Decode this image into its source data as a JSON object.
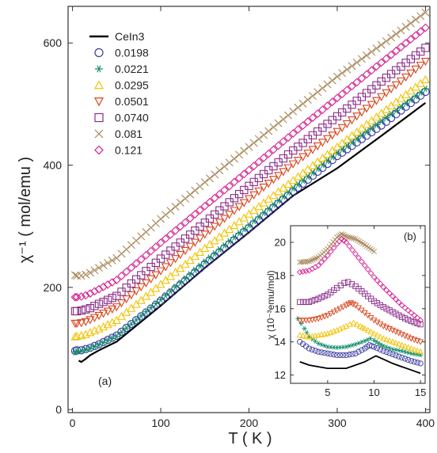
{
  "chart_data": [
    {
      "type": "scatter",
      "panel_label": "(a)",
      "xlabel": "T ( K )",
      "ylabel": "χ⁻¹ ( mol/emu )",
      "xlim": [
        -5,
        405
      ],
      "ylim": [
        -5,
        660
      ],
      "xticks": [
        0,
        100,
        200,
        300,
        400
      ],
      "yticks": [
        0,
        200,
        400,
        600
      ],
      "grid": false,
      "legend_position": "top-left",
      "series": [
        {
          "name": "CeIn3",
          "marker": "line",
          "color": "#000000",
          "x": [
            7,
            10,
            15,
            20,
            30,
            50,
            100,
            150,
            200,
            250,
            300,
            350,
            400
          ],
          "y": [
            80,
            78,
            83,
            89,
            97,
            111,
            170,
            232,
            290,
            350,
            395,
            448,
            502
          ]
        },
        {
          "name": "0.0198",
          "marker": "circle",
          "color": "#3a3a9e",
          "x": [
            3,
            5,
            10,
            15,
            20,
            30,
            50,
            100,
            150,
            200,
            250,
            300,
            350,
            400
          ],
          "y": [
            96,
            97,
            97,
            99,
            101,
            107,
            121,
            178,
            238,
            297,
            357,
            415,
            465,
            520
          ]
        },
        {
          "name": "0.0221",
          "marker": "asterisk",
          "color": "#12906a",
          "x": [
            3,
            5,
            10,
            15,
            20,
            30,
            50,
            100,
            150,
            200,
            250,
            300,
            350,
            400
          ],
          "y": [
            94,
            95,
            96,
            98,
            100,
            106,
            120,
            180,
            242,
            302,
            362,
            420,
            472,
            525
          ]
        },
        {
          "name": "0.0295",
          "marker": "triangle-up",
          "color": "#f2c200",
          "x": [
            3,
            5,
            10,
            15,
            20,
            30,
            50,
            100,
            150,
            200,
            250,
            300,
            350,
            400
          ],
          "y": [
            119,
            120,
            121,
            123,
            126,
            132,
            146,
            205,
            264,
            320,
            375,
            430,
            485,
            540
          ]
        },
        {
          "name": "0.0501",
          "marker": "triangle-down",
          "color": "#d9431a",
          "x": [
            3,
            5,
            10,
            15,
            20,
            30,
            50,
            100,
            150,
            200,
            250,
            300,
            350,
            400
          ],
          "y": [
            141,
            141,
            142,
            144,
            147,
            154,
            168,
            227,
            287,
            345,
            402,
            455,
            512,
            570
          ]
        },
        {
          "name": "0.0740",
          "marker": "square",
          "color": "#8a2d8a",
          "x": [
            3,
            5,
            10,
            15,
            20,
            30,
            50,
            100,
            150,
            200,
            250,
            300,
            350,
            400
          ],
          "y": [
            161,
            161,
            162,
            164,
            166,
            173,
            186,
            247,
            306,
            366,
            424,
            480,
            537,
            592
          ]
        },
        {
          "name": "0.081",
          "marker": "cross",
          "color": "#a8895a",
          "x": [
            3,
            5,
            10,
            15,
            20,
            30,
            50,
            100,
            150,
            200,
            250,
            300,
            350,
            400
          ],
          "y": [
            220,
            219,
            219,
            221,
            224,
            232,
            248,
            312,
            372,
            430,
            488,
            545,
            597,
            650
          ]
        },
        {
          "name": "0.121",
          "marker": "diamond",
          "color": "#d42090",
          "x": [
            3,
            5,
            10,
            15,
            20,
            30,
            50,
            100,
            150,
            200,
            250,
            300,
            350,
            400
          ],
          "y": [
            184,
            184,
            185,
            187,
            190,
            197,
            212,
            273,
            333,
            392,
            452,
            510,
            568,
            625
          ]
        }
      ]
    },
    {
      "type": "scatter",
      "panel_label": "(b)",
      "xlabel": "",
      "ylabel": "χ (10⁻³emu/mol)",
      "xlim": [
        1,
        15.5
      ],
      "ylim": [
        11.5,
        21
      ],
      "xticks": [
        5,
        10,
        15
      ],
      "yticks": [
        12,
        14,
        16,
        18,
        20
      ],
      "grid": false,
      "series": [
        {
          "name": "CeIn3",
          "marker": "line",
          "color": "#000000",
          "x": [
            2,
            3,
            4,
            5,
            6,
            7,
            8,
            9,
            10,
            10.2,
            11,
            12,
            13,
            14,
            15
          ],
          "y": [
            12.8,
            12.6,
            12.5,
            12.4,
            12.4,
            12.4,
            12.6,
            12.8,
            13.1,
            13.15,
            12.95,
            12.7,
            12.5,
            12.3,
            12.1
          ]
        },
        {
          "name": "0.0198",
          "marker": "circle",
          "color": "#3a3a9e",
          "x": [
            2,
            3,
            4,
            5,
            6,
            7,
            8,
            9,
            9.5,
            10,
            11,
            12,
            13,
            14,
            15
          ],
          "y": [
            14.0,
            13.6,
            13.4,
            13.3,
            13.2,
            13.2,
            13.3,
            13.6,
            13.8,
            13.7,
            13.45,
            13.25,
            13.05,
            12.85,
            12.7
          ]
        },
        {
          "name": "0.0221",
          "marker": "asterisk",
          "color": "#12906a",
          "x": [
            1.8,
            2.5,
            3,
            4,
            5,
            6,
            7,
            8,
            9,
            9.6,
            10,
            10.5,
            11,
            12,
            13,
            14,
            15
          ],
          "y": [
            15.4,
            14.8,
            14.3,
            13.9,
            13.7,
            13.65,
            13.7,
            13.85,
            14.05,
            14.2,
            14.1,
            13.9,
            13.75,
            13.55,
            13.45,
            13.3,
            13.2
          ]
        },
        {
          "name": "0.0295",
          "marker": "triangle-up",
          "color": "#f2c200",
          "x": [
            2,
            3,
            4,
            5,
            6,
            7,
            7.8,
            8.5,
            9,
            10,
            11,
            12,
            13,
            14,
            15
          ],
          "y": [
            14.4,
            14.3,
            14.4,
            14.5,
            14.7,
            14.95,
            15.15,
            14.95,
            14.8,
            14.5,
            14.2,
            14.0,
            13.8,
            13.6,
            13.4
          ]
        },
        {
          "name": "0.0501",
          "marker": "triangle-down",
          "color": "#d9431a",
          "x": [
            2,
            3,
            4,
            5,
            6,
            7,
            7.5,
            8,
            9,
            10,
            11,
            12,
            13,
            14,
            15
          ],
          "y": [
            15.3,
            15.3,
            15.4,
            15.6,
            15.9,
            16.2,
            16.35,
            16.2,
            15.75,
            15.3,
            14.95,
            14.7,
            14.45,
            14.2,
            14.0
          ]
        },
        {
          "name": "0.0740",
          "marker": "square",
          "color": "#8a2d8a",
          "x": [
            2,
            3,
            4,
            5,
            6,
            6.8,
            7.2,
            8,
            9,
            10,
            11,
            12,
            13,
            14,
            15
          ],
          "y": [
            16.4,
            16.4,
            16.6,
            16.85,
            17.25,
            17.55,
            17.6,
            17.35,
            16.9,
            16.45,
            16.1,
            15.8,
            15.5,
            15.25,
            15.05
          ]
        },
        {
          "name": "0.081",
          "marker": "cross",
          "color": "#a8895a",
          "x": [
            2,
            3,
            4,
            5,
            6,
            6.5,
            7,
            8,
            9,
            10
          ],
          "y": [
            18.8,
            18.85,
            19.1,
            19.6,
            20.3,
            20.5,
            20.35,
            20.2,
            19.85,
            19.45
          ]
        },
        {
          "name": "0.121",
          "marker": "diamond",
          "color": "#d42090",
          "x": [
            2,
            3,
            4,
            5,
            6,
            6.5,
            7,
            8,
            9,
            10,
            11,
            12,
            13,
            14,
            15
          ],
          "y": [
            18.2,
            18.3,
            18.6,
            19.2,
            19.9,
            20.2,
            20.0,
            19.3,
            18.6,
            17.9,
            17.3,
            16.75,
            16.2,
            15.75,
            15.3
          ]
        }
      ]
    }
  ]
}
